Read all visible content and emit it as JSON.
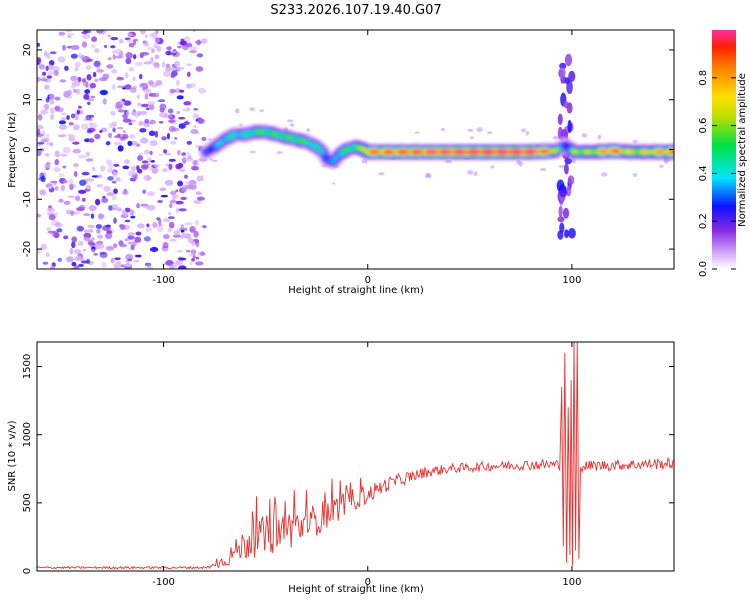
{
  "title": "S233.2026.107.19.40.G07",
  "chart_data": [
    {
      "type": "heatmap",
      "xlabel": "Height of straight line (km)",
      "ylabel": "Frequency (Hz)",
      "xlim": [
        -162,
        150
      ],
      "ylim": [
        -24,
        24
      ],
      "xticks": [
        -100,
        0,
        100
      ],
      "yticks": [
        -20,
        -10,
        0,
        10,
        20
      ],
      "xtick_labels": [
        "-100",
        "0",
        "100"
      ],
      "ytick_labels": [
        "-20",
        "-10",
        "0",
        "10",
        "20"
      ],
      "colorbar": {
        "label": "Normalized spectral amplitude",
        "range": [
          0,
          1
        ],
        "ticks": [
          0.0,
          0.2,
          0.4,
          0.6,
          0.8
        ],
        "tick_labels": [
          "0.0",
          "0.2",
          "0.4",
          "0.6",
          "0.8"
        ]
      },
      "ridge": {
        "x": [
          -79,
          -75,
          -70,
          -65,
          -60,
          -55,
          -50,
          -45,
          -40,
          -35,
          -30,
          -25,
          -22,
          -20,
          -17,
          -14,
          -10,
          -6,
          -2,
          0,
          20,
          40,
          60,
          80,
          92,
          95,
          97,
          99,
          101,
          104,
          110,
          120,
          130,
          140,
          150
        ],
        "freq_hz": [
          -0.5,
          0.5,
          2.0,
          3.0,
          3.0,
          3.5,
          3.5,
          3.0,
          2.5,
          2.0,
          1.5,
          0.5,
          -0.5,
          -2.0,
          -2.5,
          -1.0,
          0.0,
          0.5,
          0.0,
          -0.5,
          -0.5,
          -0.5,
          -0.5,
          -0.5,
          -0.3,
          0.5,
          1.0,
          0.2,
          -0.5,
          -0.5,
          -0.5,
          -0.3,
          -0.5,
          -0.5,
          -0.5
        ],
        "amplitude": [
          0.3,
          0.3,
          0.4,
          0.4,
          0.4,
          0.5,
          0.5,
          0.5,
          0.5,
          0.5,
          0.5,
          0.4,
          0.4,
          0.3,
          0.3,
          0.4,
          0.5,
          0.5,
          0.6,
          0.8,
          0.85,
          0.9,
          0.95,
          0.95,
          0.7,
          0.3,
          0.25,
          0.3,
          0.6,
          0.6,
          0.6,
          0.85,
          0.6,
          0.7,
          0.8
        ]
      },
      "noise_region_x": [
        -162,
        -80
      ]
    },
    {
      "type": "line",
      "xlabel": "Height of straight line (km)",
      "ylabel": "SNR (10 * v/v)",
      "xlim": [
        -162,
        150
      ],
      "ylim": [
        0,
        1680
      ],
      "xticks": [
        -100,
        0,
        100
      ],
      "yticks": [
        0,
        500,
        1000,
        1500
      ],
      "xtick_labels": [
        "-100",
        "0",
        "100"
      ],
      "ytick_labels": [
        "0",
        "500",
        "1000",
        "1500"
      ],
      "series": [
        {
          "name": "SNR",
          "color": "#e8322f",
          "envelope_x": [
            -162,
            -80,
            -75,
            -70,
            -65,
            -60,
            -55,
            -50,
            -45,
            -40,
            -35,
            -30,
            -25,
            -20,
            -15,
            -10,
            -5,
            0,
            5,
            10,
            20,
            30,
            40,
            50,
            60,
            70,
            80,
            90,
            94
          ],
          "envelope_y": [
            25,
            25,
            40,
            80,
            140,
            200,
            240,
            260,
            280,
            300,
            320,
            340,
            380,
            420,
            460,
            500,
            540,
            560,
            600,
            640,
            690,
            730,
            750,
            760,
            770,
            775,
            780,
            780,
            780
          ],
          "noise_amp": [
            8,
            8,
            20,
            50,
            90,
            120,
            140,
            150,
            150,
            150,
            140,
            130,
            120,
            110,
            100,
            90,
            80,
            70,
            60,
            50,
            45,
            40,
            35,
            35,
            35,
            35,
            40,
            40,
            40
          ],
          "spikes": [
            {
              "x": 95.0,
              "y": 1350
            },
            {
              "x": 95.8,
              "y": 180
            },
            {
              "x": 96.5,
              "y": 1600
            },
            {
              "x": 97.4,
              "y": 60
            },
            {
              "x": 98.2,
              "y": 1200
            },
            {
              "x": 99.0,
              "y": 120
            },
            {
              "x": 99.6,
              "y": 1400
            },
            {
              "x": 100.3,
              "y": 40
            },
            {
              "x": 101.0,
              "y": 1680
            },
            {
              "x": 101.8,
              "y": 150
            },
            {
              "x": 102.6,
              "y": 1680
            },
            {
              "x": 103.4,
              "y": 90
            },
            {
              "x": 104.2,
              "y": 760
            }
          ],
          "tail_x": [
            105,
            150
          ],
          "tail_y": [
            770,
            790
          ],
          "tail_noise": 40
        }
      ]
    }
  ]
}
